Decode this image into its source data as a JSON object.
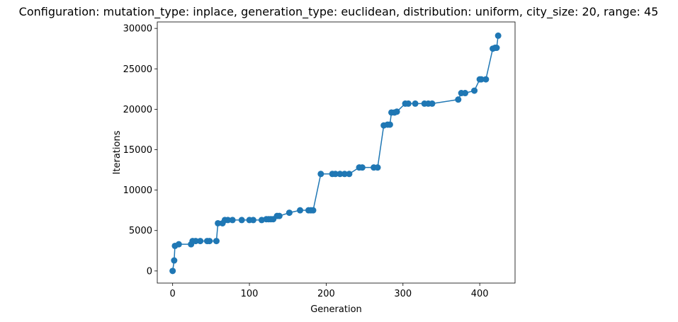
{
  "chart_data": {
    "type": "line",
    "title": "Configuration: mutation_type: inplace, generation_type: euclidean, distribution: uniform, city_size: 20, range: 45",
    "xlabel": "Generation",
    "ylabel": "Iterations",
    "xlim": [
      -20,
      446
    ],
    "ylim": [
      -1500,
      30800
    ],
    "xticks": [
      0,
      100,
      200,
      300,
      400
    ],
    "yticks": [
      0,
      5000,
      10000,
      15000,
      20000,
      25000,
      30000
    ],
    "grid": false,
    "legend": "none",
    "color": "#1f77b4",
    "markers": true,
    "series": [
      {
        "x": [
          0,
          2,
          3,
          8,
          24,
          26,
          30,
          36,
          45,
          48,
          57,
          59,
          65,
          68,
          72,
          78,
          90,
          100,
          105,
          116,
          122,
          125,
          128,
          131,
          136,
          139,
          152,
          166,
          177,
          180,
          183,
          193,
          208,
          212,
          218,
          224,
          230,
          243,
          247,
          262,
          267,
          275,
          280,
          283,
          285,
          289,
          292,
          303,
          307,
          316,
          328,
          333,
          338,
          372,
          376,
          381,
          393,
          400,
          402,
          408,
          417,
          420,
          422,
          424
        ],
        "y": [
          0,
          1300,
          3100,
          3300,
          3300,
          3700,
          3700,
          3700,
          3700,
          3700,
          3700,
          5900,
          5900,
          6300,
          6300,
          6300,
          6300,
          6300,
          6300,
          6300,
          6400,
          6400,
          6400,
          6400,
          6800,
          6800,
          7200,
          7500,
          7500,
          7500,
          7500,
          12000,
          12000,
          12000,
          12000,
          12000,
          12000,
          12800,
          12800,
          12800,
          12800,
          18000,
          18100,
          18100,
          19600,
          19600,
          19700,
          20700,
          20700,
          20700,
          20700,
          20700,
          20700,
          21200,
          22000,
          22000,
          22300,
          23700,
          23700,
          23700,
          27500,
          27600,
          27600,
          29100
        ]
      }
    ]
  }
}
